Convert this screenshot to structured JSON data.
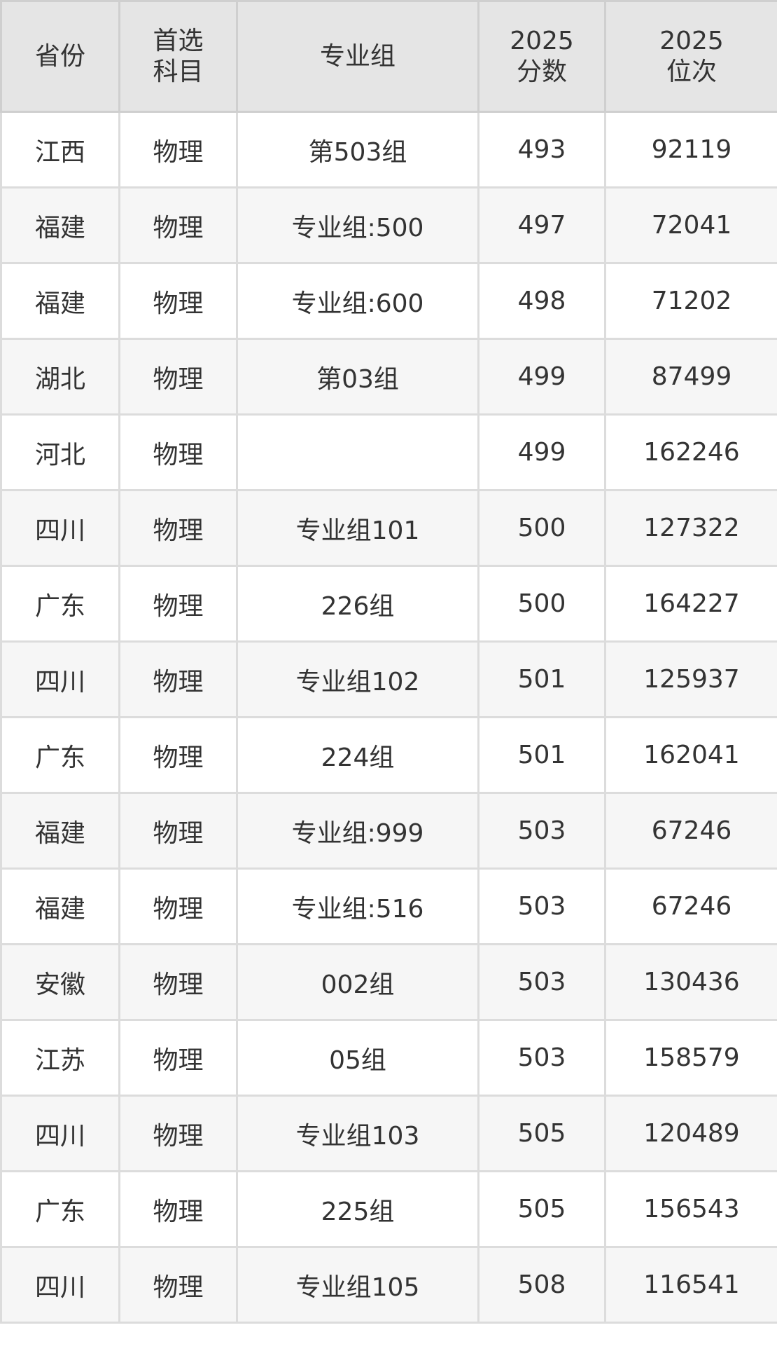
{
  "header": [
    "省份",
    "首选\n科目",
    "专业组",
    "2025\n分数",
    "2025\n位次"
  ],
  "header_lines": [
    [
      "省份"
    ],
    [
      "首选",
      "科目"
    ],
    [
      "专业组"
    ],
    [
      "2025",
      "分数"
    ],
    [
      "2025",
      "位次"
    ]
  ],
  "rows": [
    [
      "江西",
      "物理",
      "第503组",
      "493",
      "92119"
    ],
    [
      "福建",
      "物理",
      "专业组:500",
      "497",
      "72041"
    ],
    [
      "福建",
      "物理",
      "专业组:600",
      "498",
      "71202"
    ],
    [
      "湖北",
      "物理",
      "第03组",
      "499",
      "87499"
    ],
    [
      "河北",
      "物理",
      "",
      "499",
      "162246"
    ],
    [
      "四川",
      "物理",
      "专业组101",
      "500",
      "127322"
    ],
    [
      "广东",
      "物理",
      "226组",
      "500",
      "164227"
    ],
    [
      "四川",
      "物理",
      "专业组102",
      "501",
      "125937"
    ],
    [
      "广东",
      "物理",
      "224组",
      "501",
      "162041"
    ],
    [
      "福建",
      "物理",
      "专业组:999",
      "503",
      "67246"
    ],
    [
      "福建",
      "物理",
      "专业组:516",
      "503",
      "67246"
    ],
    [
      "安徽",
      "物理",
      "002组",
      "503",
      "130436"
    ],
    [
      "江苏",
      "物理",
      "05组",
      "503",
      "158579"
    ],
    [
      "四川",
      "物理",
      "专业组103",
      "505",
      "120489"
    ],
    [
      "广东",
      "物理",
      "225组",
      "505",
      "156543"
    ],
    [
      "四川",
      "物理",
      "专业组105",
      "508",
      "116541"
    ]
  ],
  "colors": {
    "header_bg": "#e5e5e5",
    "row_alt_bg": "#f6f6f6",
    "border": "#dcdcdc",
    "text": "#333333"
  }
}
